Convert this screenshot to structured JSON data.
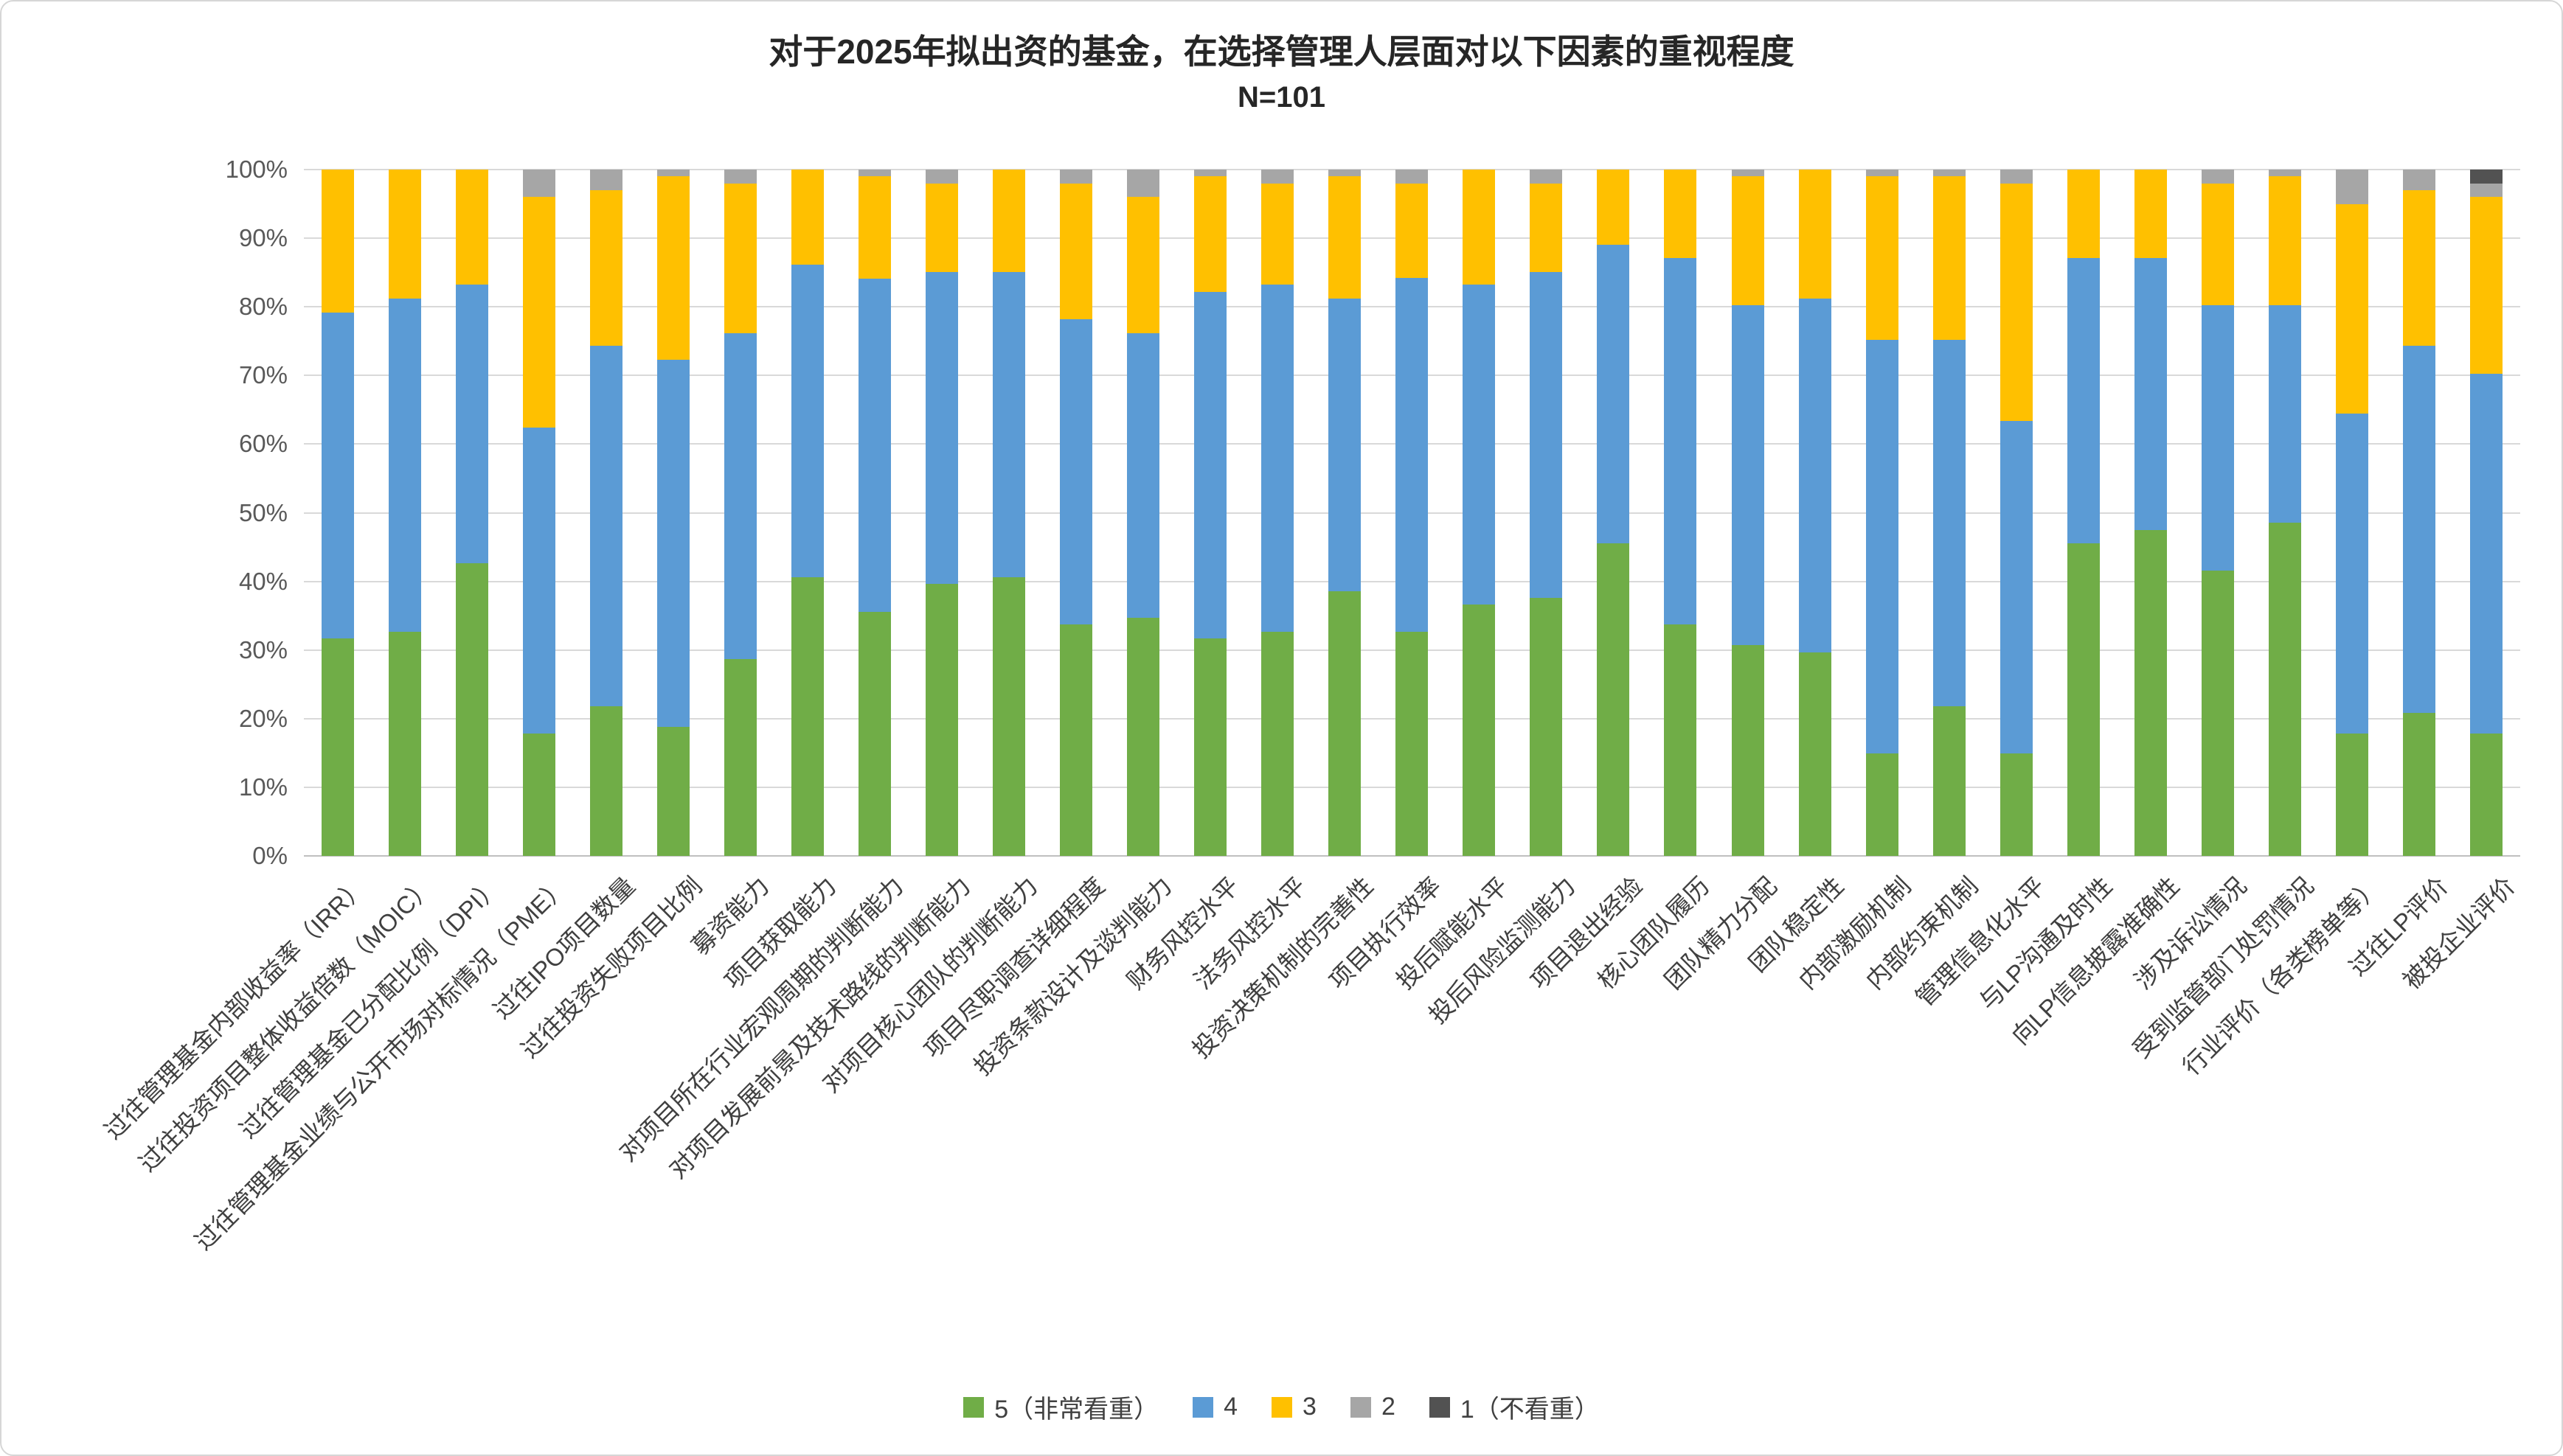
{
  "title": "对于2025年拟出资的基金，在选择管理人层面对以下因素的重视程度",
  "subtitle": "N=101",
  "chart_data": {
    "type": "bar",
    "variant": "100-percent-stacked-column",
    "title": "对于2025年拟出资的基金，在选择管理人层面对以下因素的重视程度",
    "subtitle": "N=101",
    "xlabel": "",
    "ylabel": "",
    "ylim": [
      0,
      100
    ],
    "ytick_step": 10,
    "ytick_suffix": "%",
    "grid": true,
    "legend_position": "bottom",
    "categories": [
      "过往管理基金内部收益率（IRR）",
      "过往投资项目整体收益倍数（MOIC）",
      "过往管理基金已分配比例（DPI）",
      "过往管理基金业绩与公开市场对标情况（PME）",
      "过往IPO项目数量",
      "过往投资失败项目比例",
      "募资能力",
      "项目获取能力",
      "对项目所在行业宏观周期的判断能力",
      "对项目发展前景及技术路线的判断能力",
      "对项目核心团队的判断能力",
      "项目尽职调查详细程度",
      "投资条款设计及谈判能力",
      "财务风控水平",
      "法务风控水平",
      "投资决策机制的完善性",
      "项目执行效率",
      "投后赋能水平",
      "投后风险监测能力",
      "项目退出经验",
      "核心团队履历",
      "团队精力分配",
      "团队稳定性",
      "内部激励机制",
      "内部约束机制",
      "管理信息化水平",
      "与LP沟通及时性",
      "向LP信息披露准确性",
      "涉及诉讼情况",
      "受到监管部门处罚情况",
      "行业评价（各类榜单等）",
      "过往LP评价",
      "被投企业评价"
    ],
    "series": [
      {
        "name": "5（非常看重）",
        "color": "#70AD47",
        "values": [
          31.7,
          32.7,
          42.6,
          17.8,
          21.8,
          18.8,
          28.7,
          40.6,
          35.6,
          39.6,
          40.6,
          33.7,
          34.7,
          31.7,
          32.7,
          38.6,
          32.7,
          36.6,
          37.6,
          45.5,
          33.7,
          30.7,
          29.7,
          14.9,
          21.8,
          14.9,
          45.5,
          47.5,
          41.6,
          48.5,
          17.8,
          20.8,
          17.8
        ]
      },
      {
        "name": "4",
        "color": "#5B9BD5",
        "values": [
          47.5,
          48.5,
          40.6,
          44.6,
          52.5,
          53.5,
          47.5,
          45.5,
          48.5,
          45.5,
          44.5,
          44.5,
          41.5,
          50.5,
          50.5,
          42.6,
          51.5,
          46.6,
          47.5,
          43.6,
          53.4,
          49.5,
          51.5,
          60.3,
          53.4,
          48.5,
          41.6,
          39.6,
          38.6,
          31.7,
          46.6,
          53.5,
          52.5
        ]
      },
      {
        "name": "3",
        "color": "#FFC000",
        "values": [
          20.8,
          18.8,
          16.8,
          33.6,
          22.7,
          26.7,
          21.8,
          13.9,
          14.9,
          12.9,
          14.9,
          19.8,
          19.8,
          16.8,
          14.8,
          17.8,
          13.8,
          16.8,
          12.9,
          10.9,
          12.9,
          18.8,
          18.8,
          23.8,
          23.8,
          34.6,
          12.9,
          12.9,
          17.8,
          18.8,
          30.6,
          22.7,
          25.7
        ]
      },
      {
        "name": "2",
        "color": "#A6A6A6",
        "values": [
          0,
          0,
          0,
          4.0,
          3.0,
          1.0,
          2.0,
          0,
          1.0,
          2.0,
          0,
          2.0,
          4.0,
          1.0,
          2.0,
          1.0,
          2.0,
          0,
          2.0,
          0,
          0,
          1.0,
          0,
          1.0,
          1.0,
          2.0,
          0,
          0,
          2.0,
          1.0,
          5.0,
          3.0,
          2.0
        ]
      },
      {
        "name": "1（不看重）",
        "color": "#525252",
        "values": [
          0,
          0,
          0,
          0,
          0,
          0,
          0,
          0,
          0,
          0,
          0,
          0,
          0,
          0,
          0,
          0,
          0,
          0,
          0,
          0,
          0,
          0,
          0,
          0,
          0,
          0,
          0,
          0,
          0,
          0,
          0,
          0,
          2.0
        ]
      }
    ]
  }
}
